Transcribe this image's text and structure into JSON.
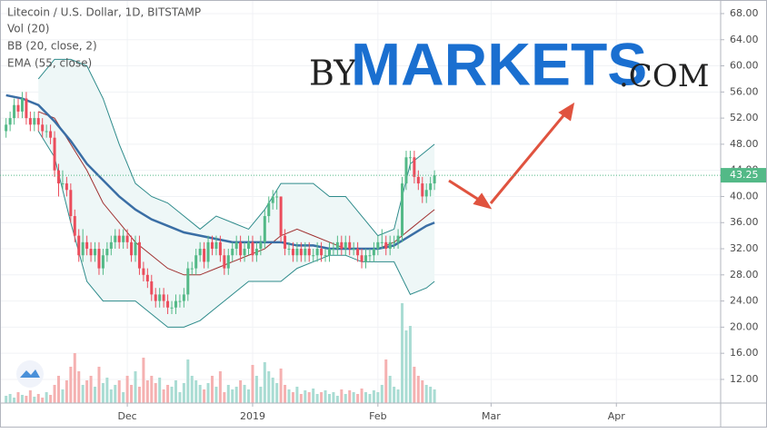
{
  "chart_data": {
    "type": "candlestick",
    "title": "Litecoin / U.S. Dollar, 1D, BITSTAMP",
    "indicators": [
      "Vol (20)",
      "BB (20, close, 2)",
      "EMA (55, close)"
    ],
    "watermark": [
      "BY",
      "MARKETS",
      ".COM"
    ],
    "xlim": [
      -1.5,
      176.8
    ],
    "ylim": [
      8.38,
      70.08
    ],
    "xticks": [
      {
        "value": 30,
        "label": "Dec"
      },
      {
        "value": 61,
        "label": "2019"
      },
      {
        "value": 92,
        "label": "Feb"
      },
      {
        "value": 120,
        "label": "Mar"
      },
      {
        "value": 151,
        "label": "Apr"
      }
    ],
    "yticks": [
      {
        "value": 68,
        "label": "68.00"
      },
      {
        "value": 64,
        "label": "64.00"
      },
      {
        "value": 60,
        "label": "60.00"
      },
      {
        "value": 56,
        "label": "56.00"
      },
      {
        "value": 52,
        "label": "52.00"
      },
      {
        "value": 48,
        "label": "48.00"
      },
      {
        "value": 44,
        "label": "44.00"
      },
      {
        "value": 40,
        "label": "40.00"
      },
      {
        "value": 36,
        "label": "36.00"
      },
      {
        "value": 32,
        "label": "32.00"
      },
      {
        "value": 28,
        "label": "28.00"
      },
      {
        "value": 24,
        "label": "24.00"
      },
      {
        "value": 20,
        "label": "20.00"
      },
      {
        "value": 16,
        "label": "16.00"
      },
      {
        "value": 12,
        "label": "12.00"
      }
    ],
    "grid": true,
    "up_color": "#53b987",
    "down_color": "#eb4d5c",
    "volume_up_color": "#a9dcd3",
    "volume_down_color": "#f5b1b1",
    "last_price": 43.25,
    "candles": [
      [
        50,
        52,
        49,
        51
      ],
      [
        51,
        53,
        50,
        52
      ],
      [
        52,
        55,
        51,
        54
      ],
      [
        54,
        55,
        52,
        53
      ],
      [
        53,
        56,
        52,
        55
      ],
      [
        55,
        56,
        51,
        52
      ],
      [
        52,
        53,
        50,
        51
      ],
      [
        51,
        53,
        50,
        52
      ],
      [
        52,
        53,
        50,
        51
      ],
      [
        51,
        52,
        49,
        50
      ],
      [
        50,
        51,
        49,
        50
      ],
      [
        50,
        51,
        48,
        49
      ],
      [
        49,
        50,
        43,
        44
      ],
      [
        44,
        45,
        40,
        42
      ],
      [
        42,
        44,
        41,
        42
      ],
      [
        42,
        43,
        40,
        41
      ],
      [
        41,
        42,
        36,
        37
      ],
      [
        37,
        38,
        33,
        34
      ],
      [
        34,
        35,
        30,
        31
      ],
      [
        31,
        35,
        30,
        33
      ],
      [
        33,
        34,
        31,
        32
      ],
      [
        32,
        33,
        30,
        31
      ],
      [
        31,
        33,
        30,
        32
      ],
      [
        32,
        33,
        28,
        29
      ],
      [
        29,
        32,
        28,
        31
      ],
      [
        31,
        33,
        30,
        32
      ],
      [
        32,
        34,
        31,
        33
      ],
      [
        33,
        35,
        32,
        34
      ],
      [
        34,
        35,
        32,
        33
      ],
      [
        33,
        35,
        32,
        34
      ],
      [
        34,
        35,
        32,
        33
      ],
      [
        33,
        34,
        30,
        31
      ],
      [
        31,
        34,
        30,
        33
      ],
      [
        33,
        34,
        28,
        29
      ],
      [
        29,
        30,
        27,
        28
      ],
      [
        28,
        29,
        26,
        27
      ],
      [
        27,
        28,
        24,
        25
      ],
      [
        25,
        26,
        23,
        24
      ],
      [
        24,
        26,
        23,
        25
      ],
      [
        25,
        26,
        23,
        24
      ],
      [
        24,
        25,
        22,
        23
      ],
      [
        23,
        24,
        22,
        23
      ],
      [
        23,
        25,
        22,
        24
      ],
      [
        24,
        25,
        23,
        24
      ],
      [
        24,
        26,
        23,
        25
      ],
      [
        25,
        30,
        24,
        29
      ],
      [
        29,
        30,
        28,
        29
      ],
      [
        29,
        32,
        28,
        31
      ],
      [
        31,
        33,
        30,
        32
      ],
      [
        32,
        33,
        29,
        30
      ],
      [
        30,
        34,
        29,
        33
      ],
      [
        33,
        34,
        31,
        32
      ],
      [
        32,
        34,
        31,
        33
      ],
      [
        33,
        34,
        30,
        31
      ],
      [
        31,
        32,
        28,
        29
      ],
      [
        29,
        32,
        28,
        31
      ],
      [
        31,
        33,
        30,
        32
      ],
      [
        32,
        34,
        31,
        33
      ],
      [
        33,
        34,
        30,
        31
      ],
      [
        31,
        33,
        30,
        32
      ],
      [
        32,
        34,
        31,
        33
      ],
      [
        33,
        34,
        30,
        31
      ],
      [
        31,
        33,
        30,
        32
      ],
      [
        32,
        34,
        31,
        33
      ],
      [
        33,
        38,
        32,
        37
      ],
      [
        37,
        40,
        36,
        39
      ],
      [
        39,
        41,
        38,
        40
      ],
      [
        40,
        41,
        38,
        40
      ],
      [
        40,
        40,
        33,
        34
      ],
      [
        34,
        35,
        31,
        32
      ],
      [
        32,
        33,
        31,
        32
      ],
      [
        32,
        33,
        30,
        31
      ],
      [
        31,
        33,
        30,
        32
      ],
      [
        32,
        33,
        30,
        31
      ],
      [
        31,
        33,
        30,
        32
      ],
      [
        32,
        33,
        30,
        31
      ],
      [
        31,
        32,
        30,
        31
      ],
      [
        31,
        33,
        30,
        32
      ],
      [
        32,
        33,
        30,
        31
      ],
      [
        31,
        32,
        30,
        31
      ],
      [
        31,
        33,
        30,
        32
      ],
      [
        32,
        33,
        31,
        32
      ],
      [
        32,
        34,
        31,
        33
      ],
      [
        33,
        34,
        31,
        32
      ],
      [
        32,
        34,
        31,
        33
      ],
      [
        33,
        34,
        31,
        32
      ],
      [
        32,
        33,
        31,
        32
      ],
      [
        32,
        33,
        30,
        31
      ],
      [
        31,
        32,
        29,
        30
      ],
      [
        30,
        32,
        29,
        31
      ],
      [
        31,
        32,
        30,
        31
      ],
      [
        31,
        33,
        30,
        32
      ],
      [
        32,
        34,
        31,
        33
      ],
      [
        33,
        35,
        32,
        33
      ],
      [
        33,
        34,
        31,
        32
      ],
      [
        32,
        34,
        31,
        33
      ],
      [
        33,
        34,
        32,
        33
      ],
      [
        33,
        35,
        32,
        34
      ],
      [
        34,
        43,
        33,
        42
      ],
      [
        42,
        47,
        41,
        46
      ],
      [
        46,
        47,
        44,
        46
      ],
      [
        46,
        47,
        42,
        43
      ],
      [
        43,
        44,
        41,
        42
      ],
      [
        42,
        43,
        39,
        40
      ],
      [
        40,
        42,
        39,
        41
      ],
      [
        41,
        43,
        40,
        42
      ],
      [
        42,
        44,
        41,
        43.25
      ]
    ],
    "volume": [
      8,
      10,
      6,
      12,
      9,
      8,
      14,
      7,
      10,
      6,
      12,
      9,
      20,
      30,
      15,
      25,
      40,
      55,
      35,
      20,
      25,
      30,
      18,
      40,
      22,
      28,
      15,
      20,
      25,
      12,
      30,
      20,
      35,
      18,
      50,
      25,
      30,
      22,
      28,
      15,
      20,
      18,
      25,
      12,
      22,
      48,
      30,
      25,
      20,
      15,
      22,
      30,
      18,
      35,
      12,
      20,
      15,
      18,
      25,
      20,
      15,
      42,
      30,
      18,
      45,
      35,
      28,
      22,
      38,
      20,
      15,
      12,
      18,
      10,
      14,
      12,
      16,
      10,
      12,
      14,
      10,
      12,
      8,
      15,
      10,
      14,
      12,
      10,
      16,
      12,
      10,
      14,
      12,
      20,
      48,
      30,
      18,
      15,
      110,
      80,
      85,
      40,
      30,
      25,
      20,
      18,
      15
    ],
    "bollinger": {
      "color": "#2e8b8b",
      "basis_color": "#a03030",
      "fill": "#eef7f7",
      "x": [
        8,
        12,
        16,
        20,
        24,
        28,
        32,
        36,
        40,
        44,
        48,
        52,
        56,
        60,
        64,
        68,
        72,
        76,
        80,
        84,
        88,
        92,
        96,
        100,
        104,
        106
      ],
      "upper": [
        58,
        61,
        61,
        60,
        55,
        48,
        42,
        40,
        39,
        37,
        35,
        37,
        36,
        35,
        38,
        42,
        42,
        42,
        40,
        40,
        37,
        34,
        35,
        45,
        47,
        48
      ],
      "basis": [
        53,
        52,
        48,
        44,
        39,
        36,
        33,
        31,
        29,
        28,
        28,
        29,
        30,
        31,
        32,
        34,
        35,
        34,
        33,
        32,
        32,
        32,
        33,
        35,
        37,
        38
      ],
      "lower": [
        50,
        46,
        36,
        27,
        24,
        24,
        24,
        22,
        20,
        20,
        21,
        23,
        25,
        27,
        27,
        27,
        29,
        30,
        31,
        31,
        30,
        30,
        30,
        25,
        26,
        27
      ]
    },
    "ema": {
      "color": "#3a6ea5",
      "x": [
        0,
        4,
        8,
        12,
        16,
        20,
        24,
        28,
        32,
        36,
        40,
        44,
        48,
        52,
        56,
        60,
        64,
        68,
        72,
        76,
        80,
        84,
        88,
        92,
        96,
        100,
        104,
        106
      ],
      "values": [
        55.5,
        55,
        54,
        51.5,
        48.5,
        45,
        42.5,
        40,
        38,
        36.5,
        35.5,
        34.5,
        34,
        33.5,
        33,
        33,
        33,
        33,
        32.5,
        32.5,
        32,
        32,
        32,
        32,
        32.5,
        34,
        35.5,
        36
      ]
    }
  }
}
